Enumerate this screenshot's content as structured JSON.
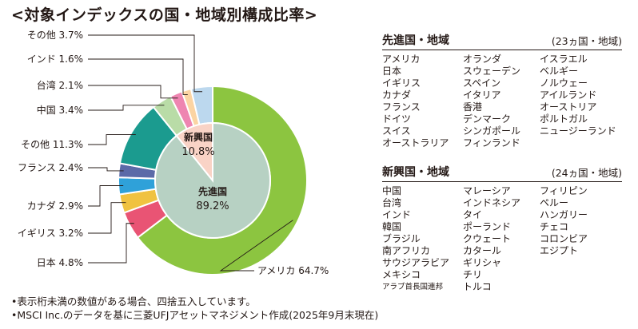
{
  "title": "<対象インデックスの国・地域別構成比率>",
  "chart_data": {
    "type": "pie",
    "outer_ring": [
      {
        "label": "アメリカ",
        "value": 64.7,
        "value_text": "64.7%",
        "color": "#8cc540"
      },
      {
        "label": "日本",
        "value": 4.8,
        "value_text": "4.8%",
        "color": "#e95474"
      },
      {
        "label": "イギリス",
        "value": 3.2,
        "value_text": "3.2%",
        "color": "#f0c240"
      },
      {
        "label": "カナダ",
        "value": 2.9,
        "value_text": "2.9%",
        "color": "#2fa1d9"
      },
      {
        "label": "フランス",
        "value": 2.4,
        "value_text": "2.4%",
        "color": "#5b6aa8"
      },
      {
        "label": "その他",
        "value": 11.3,
        "value_text": "11.3%",
        "color": "#1b9b8f"
      },
      {
        "label": "中国",
        "value": 3.4,
        "value_text": "3.4%",
        "color": "#b9dca7"
      },
      {
        "label": "台湾",
        "value": 2.1,
        "value_text": "2.1%",
        "color": "#ee85b1"
      },
      {
        "label": "インド",
        "value": 1.6,
        "value_text": "1.6%",
        "color": "#fbd4a3"
      },
      {
        "label": "その他",
        "value": 3.7,
        "value_text": "3.7%",
        "color": "#bcd8ee"
      }
    ],
    "inner_pie": [
      {
        "label": "先進国",
        "value": 89.2,
        "value_text": "89.2%",
        "color": "#b7d1c3"
      },
      {
        "label": "新興国",
        "value": 10.8,
        "value_text": "10.8%",
        "color": "#f9d3c6"
      }
    ]
  },
  "developed": {
    "title": "先進国・地域",
    "count": "(23ヵ国・地域)",
    "columns": [
      [
        "アメリカ",
        "日本",
        "イギリス",
        "カナダ",
        "フランス",
        "ドイツ",
        "スイス",
        "オーストラリア"
      ],
      [
        "オランダ",
        "スウェーデン",
        "スペイン",
        "イタリア",
        "香港",
        "デンマーク",
        "シンガポール",
        "フィンランド"
      ],
      [
        "イスラエル",
        "ベルギー",
        "ノルウェー",
        "アイルランド",
        "オーストリア",
        "ポルトガル",
        "ニュージーランド"
      ]
    ]
  },
  "emerging": {
    "title": "新興国・地域",
    "count": "(24ヵ国・地域)",
    "columns": [
      [
        "中国",
        "台湾",
        "インド",
        "韓国",
        "ブラジル",
        "南アフリカ",
        "サウジアラビア",
        "メキシコ",
        "アラブ首長国連邦"
      ],
      [
        "マレーシア",
        "インドネシア",
        "タイ",
        "ポーランド",
        "クウェート",
        "カタール",
        "ギリシャ",
        "チリ",
        "トルコ"
      ],
      [
        "フィリピン",
        "ペルー",
        "ハンガリー",
        "チェコ",
        "コロンビア",
        "エジプト"
      ]
    ]
  },
  "notes": [
    "•表示桁未満の数値がある場合、四捨五入しています。",
    "•MSCI Inc.のデータを基に三菱UFJアセットマネジメント作成(2025年9月末現在)"
  ]
}
